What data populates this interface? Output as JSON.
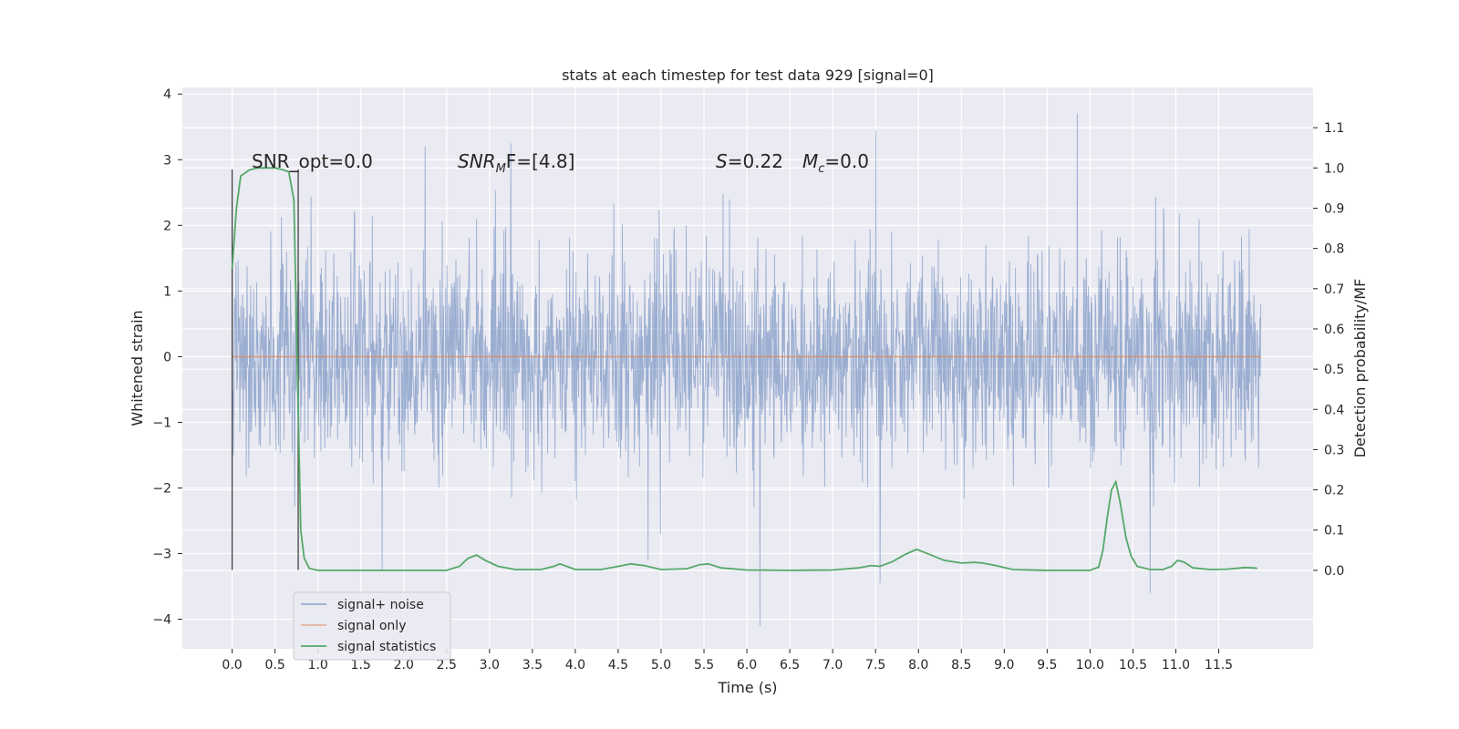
{
  "chart_data": {
    "type": "line",
    "title": "stats at each timestep for test data 929 [signal=0]",
    "xlabel": "Time (s)",
    "ylabel": "Whitened strain",
    "y2label": "Detection probability/MF",
    "xlim": [
      -0.58,
      12.6
    ],
    "ylim": [
      -4.45,
      4.1
    ],
    "y2lim": [
      -0.195,
      1.2
    ],
    "xticks": [
      0.0,
      0.5,
      1.0,
      1.5,
      2.0,
      2.5,
      3.0,
      3.5,
      4.0,
      4.5,
      5.0,
      5.5,
      6.0,
      6.5,
      7.0,
      7.5,
      8.0,
      8.5,
      9.0,
      9.5,
      10.0,
      10.5,
      11.0,
      11.5
    ],
    "xtick_labels": [
      "0.0",
      "0.5",
      "1.0",
      "1.5",
      "2.0",
      "2.5",
      "3.0",
      "3.5",
      "4.0",
      "4.5",
      "5.0",
      "5.5",
      "6.0",
      "6.5",
      "7.0",
      "7.5",
      "8.0",
      "8.5",
      "9.0",
      "9.5",
      "10.0",
      "10.5",
      "11.0",
      "11.5"
    ],
    "yticks": [
      -4,
      -3,
      -2,
      -1,
      0,
      1,
      2,
      3,
      4
    ],
    "ytick_labels": [
      "−4",
      "−3",
      "−2",
      "−1",
      "0",
      "1",
      "2",
      "3",
      "4"
    ],
    "y2ticks": [
      0.0,
      0.1,
      0.2,
      0.3,
      0.4,
      0.5,
      0.6,
      0.7,
      0.8,
      0.9,
      1.0,
      1.1
    ],
    "y2tick_labels": [
      "0.0",
      "0.1",
      "0.2",
      "0.3",
      "0.4",
      "0.5",
      "0.6",
      "0.7",
      "0.8",
      "0.9",
      "1.0",
      "1.1"
    ],
    "grid": true,
    "legend_position": "lower-left",
    "annotations": {
      "snr_opt": "SNR_opt=0.0",
      "snr_mf_base": "SNR",
      "snr_mf_sub": "M",
      "snr_mf_rest": "F=[4.8]",
      "s_label": "S",
      "s_value": "=0.22",
      "mc_base": "M",
      "mc_sub": "c",
      "mc_value": "=0.0"
    },
    "event_markers_x": [
      0.0,
      0.77
    ],
    "series": [
      {
        "name": "signal+ noise",
        "color": "#4c72b0",
        "axis": "left",
        "description_values": {
          "x_range": [
            0.0,
            11.99
          ],
          "typical_abs_amplitude": 1.2,
          "peaks": [
            {
              "x": 9.85,
              "y": 3.7
            },
            {
              "x": 7.5,
              "y": 3.45
            },
            {
              "x": 6.15,
              "y": -4.1
            },
            {
              "x": 10.7,
              "y": -3.6
            },
            {
              "x": 7.55,
              "y": -3.45
            },
            {
              "x": 3.25,
              "y": 3.25
            },
            {
              "x": 2.25,
              "y": 3.2
            },
            {
              "x": 1.75,
              "y": -3.25
            },
            {
              "x": 4.85,
              "y": -3.1
            },
            {
              "x": 0.0,
              "y": 2.35
            }
          ]
        }
      },
      {
        "name": "signal only",
        "color": "#dd8452",
        "axis": "left",
        "x": [
          0.0,
          11.99
        ],
        "y": [
          0.0,
          0.0
        ]
      },
      {
        "name": "signal statistics",
        "color": "#55a868",
        "axis": "right",
        "x": [
          0.0,
          0.05,
          0.1,
          0.2,
          0.3,
          0.5,
          0.6,
          0.66,
          0.72,
          0.76,
          0.8,
          0.84,
          0.9,
          1.0,
          1.5,
          2.0,
          2.5,
          2.65,
          2.75,
          2.85,
          2.95,
          3.1,
          3.3,
          3.6,
          3.75,
          3.82,
          3.9,
          4.0,
          4.3,
          4.55,
          4.65,
          4.8,
          5.0,
          5.3,
          5.45,
          5.55,
          5.7,
          6.0,
          6.5,
          7.0,
          7.3,
          7.45,
          7.55,
          7.7,
          7.85,
          7.98,
          8.1,
          8.3,
          8.5,
          8.65,
          8.75,
          8.9,
          9.1,
          9.5,
          10.0,
          10.1,
          10.15,
          10.2,
          10.25,
          10.3,
          10.35,
          10.42,
          10.48,
          10.55,
          10.7,
          10.85,
          10.95,
          11.02,
          11.1,
          11.2,
          11.4,
          11.6,
          11.8,
          11.9,
          11.95
        ],
        "y": [
          0.75,
          0.9,
          0.98,
          0.995,
          1.0,
          1.0,
          0.995,
          0.99,
          0.92,
          0.5,
          0.1,
          0.03,
          0.005,
          0.0,
          0.0,
          0.0,
          0.0,
          0.01,
          0.03,
          0.038,
          0.025,
          0.01,
          0.002,
          0.002,
          0.01,
          0.016,
          0.01,
          0.002,
          0.002,
          0.012,
          0.016,
          0.012,
          0.002,
          0.004,
          0.014,
          0.016,
          0.006,
          0.001,
          0.0,
          0.001,
          0.006,
          0.012,
          0.01,
          0.022,
          0.04,
          0.052,
          0.042,
          0.025,
          0.018,
          0.02,
          0.018,
          0.012,
          0.002,
          0.0,
          0.0,
          0.008,
          0.05,
          0.13,
          0.2,
          0.22,
          0.17,
          0.08,
          0.035,
          0.01,
          0.002,
          0.002,
          0.01,
          0.025,
          0.02,
          0.006,
          0.002,
          0.003,
          0.007,
          0.006,
          0.005
        ]
      }
    ]
  }
}
